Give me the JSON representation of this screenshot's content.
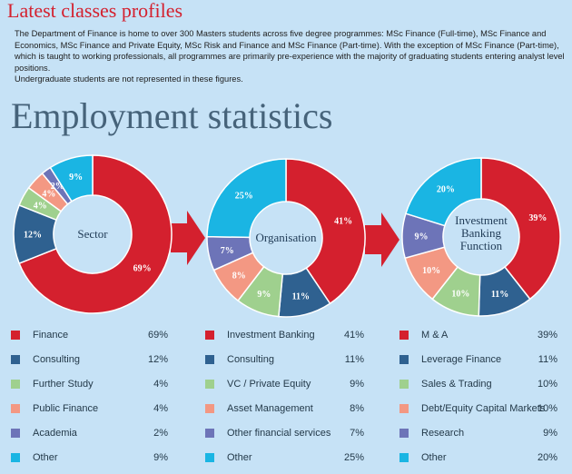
{
  "header": {
    "title": "Latest classes profiles",
    "intro": "The Department of Finance is home to over 300 Masters students across five degree programmes: MSc Finance (Full-time), MSc Finance and Economics, MSc Finance and Private Equity, MSc Risk and Finance and MSc Finance (Part-time). With the exception of MSc Finance (Part-time), which is taught to working professionals, all programmes are primarily pre-experience with the majority of graduating students entering analyst level positions.",
    "note": "Undergraduate students are not represented in these figures."
  },
  "section_title": "Employment statistics",
  "colors": {
    "red": "#d4202e",
    "navy": "#2f6190",
    "green": "#9fd08e",
    "salmon": "#f39883",
    "purple": "#6d74b8",
    "cyan": "#1ab5e3",
    "background": "#c6e2f6",
    "label_dark": "#1f3a55"
  },
  "chart_data": [
    {
      "type": "pie",
      "title": "Sector",
      "slices": [
        {
          "label": "Finance",
          "value": 69,
          "color": "#d4202e",
          "display": "69%"
        },
        {
          "label": "Consulting",
          "value": 12,
          "color": "#2f6190",
          "display": "12%"
        },
        {
          "label": "Further Study",
          "value": 4,
          "color": "#9fd08e",
          "display": "4%"
        },
        {
          "label": "Public Finance",
          "value": 4,
          "color": "#f39883",
          "display": "4%"
        },
        {
          "label": "Academia",
          "value": 2,
          "color": "#6d74b8",
          "display": "2%"
        },
        {
          "label": "Other",
          "value": 9,
          "color": "#1ab5e3",
          "display": "9%"
        }
      ]
    },
    {
      "type": "pie",
      "title": "Organisation",
      "slices": [
        {
          "label": "Investment Banking",
          "value": 41,
          "color": "#d4202e",
          "display": "41%"
        },
        {
          "label": "Consulting",
          "value": 11,
          "color": "#2f6190",
          "display": "11%"
        },
        {
          "label": "VC / Private Equity",
          "value": 9,
          "color": "#9fd08e",
          "display": "9%"
        },
        {
          "label": "Asset Management",
          "value": 8,
          "color": "#f39883",
          "display": "8%"
        },
        {
          "label": "Other financial services",
          "value": 7,
          "color": "#6d74b8",
          "display": "7%"
        },
        {
          "label": "Other",
          "value": 25,
          "color": "#1ab5e3",
          "display": "25%"
        }
      ]
    },
    {
      "type": "pie",
      "title": "Investment Banking Function",
      "slices": [
        {
          "label": "M & A",
          "value": 39,
          "color": "#d4202e",
          "display": "39%"
        },
        {
          "label": "Leverage Finance",
          "value": 11,
          "color": "#2f6190",
          "display": "11%"
        },
        {
          "label": "Sales & Trading",
          "value": 10,
          "color": "#9fd08e",
          "display": "10%"
        },
        {
          "label": "Debt/Equity Capital Markets",
          "value": 10,
          "color": "#f39883",
          "display": "10%"
        },
        {
          "label": "Research",
          "value": 9,
          "color": "#6d74b8",
          "display": "9%"
        },
        {
          "label": "Other",
          "value": 20,
          "color": "#1ab5e3",
          "display": "20%"
        }
      ]
    }
  ]
}
